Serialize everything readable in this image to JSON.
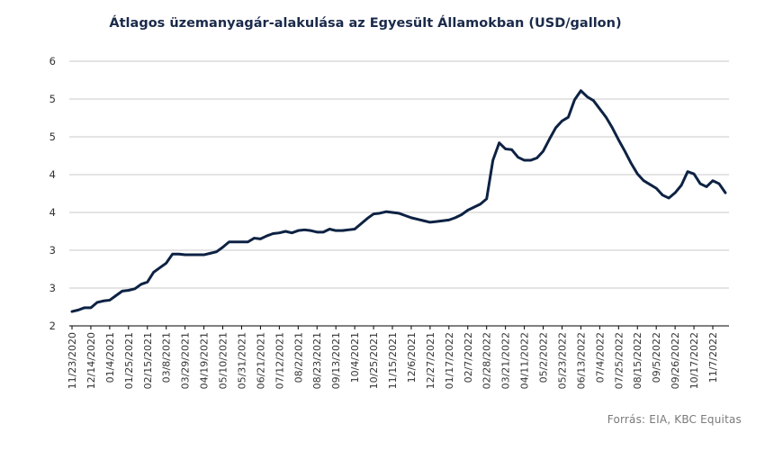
{
  "title": "Átlagos üzemanyagár-alakulása az Egyesült  Államokban (USD/gallon)",
  "source": "Forrás: EIA, KBC Equitas",
  "chart_data": {
    "type": "line",
    "title": "Átlagos üzemanyagár-alakulása az Egyesült  Államokban (USD/gallon)",
    "y_tick_labels": [
      "2",
      "3",
      "3",
      "4",
      "4",
      "5",
      "5",
      "6"
    ],
    "y_tick_values": [
      2,
      2.5,
      3,
      3.5,
      4,
      4.5,
      5,
      5.5
    ],
    "ylim": [
      2,
      5.5
    ],
    "x_tick_labels": [
      "11/23/2020",
      "12/14/2020",
      "01/4/2021",
      "01/25/2021",
      "02/15/2021",
      "03/8/2021",
      "03/29/2021",
      "04/19/2021",
      "05/10/2021",
      "05/31/2021",
      "06/21/2021",
      "07/12/2021",
      "08/2/2021",
      "08/23/2021",
      "09/13/2021",
      "10/4/2021",
      "10/25/2021",
      "11/15/2021",
      "12/6/2021",
      "12/27/2021",
      "01/17/2022",
      "02/7/2022",
      "02/28/2022",
      "03/21/2022",
      "04/11/2022",
      "05/2/2022",
      "05/23/2022",
      "06/13/2022",
      "07/4/2022",
      "07/25/2022",
      "08/15/2022",
      "09/5/2022",
      "09/26/2022",
      "10/17/2022",
      "11/7/2022"
    ],
    "grid": true,
    "legend": "none",
    "color": "#0d2243",
    "series": [
      {
        "x": [
          "11/23/2020",
          "11/30/2020",
          "12/7/2020",
          "12/14/2020",
          "12/21/2020",
          "12/28/2020",
          "01/4/2021",
          "01/11/2021",
          "01/18/2021",
          "01/25/2021",
          "02/1/2021",
          "02/8/2021",
          "02/15/2021",
          "02/22/2021",
          "03/1/2021",
          "03/8/2021",
          "03/15/2021",
          "03/22/2021",
          "03/29/2021",
          "04/5/2021",
          "04/12/2021",
          "04/19/2021",
          "04/26/2021",
          "05/3/2021",
          "05/10/2021",
          "05/17/2021",
          "05/24/2021",
          "05/31/2021",
          "06/7/2021",
          "06/14/2021",
          "06/21/2021",
          "06/28/2021",
          "07/5/2021",
          "07/12/2021",
          "07/19/2021",
          "07/26/2021",
          "08/2/2021",
          "08/9/2021",
          "08/16/2021",
          "08/23/2021",
          "08/30/2021",
          "09/6/2021",
          "09/13/2021",
          "09/20/2021",
          "09/27/2021",
          "10/4/2021",
          "10/11/2021",
          "10/18/2021",
          "10/25/2021",
          "11/1/2021",
          "11/8/2021",
          "11/15/2021",
          "11/22/2021",
          "11/29/2021",
          "12/6/2021",
          "12/13/2021",
          "12/20/2021",
          "12/27/2021",
          "01/3/2022",
          "01/10/2022",
          "01/17/2022",
          "01/24/2022",
          "01/31/2022",
          "02/7/2022",
          "02/14/2022",
          "02/21/2022",
          "02/28/2022",
          "03/7/2022",
          "03/14/2022",
          "03/21/2022",
          "03/28/2022",
          "04/4/2022",
          "04/11/2022",
          "04/18/2022",
          "04/25/2022",
          "05/2/2022",
          "05/9/2022",
          "05/16/2022",
          "05/23/2022",
          "05/30/2022",
          "06/6/2022",
          "06/13/2022",
          "06/20/2022",
          "06/27/2022",
          "07/4/2022",
          "07/11/2022",
          "07/18/2022",
          "07/25/2022",
          "08/1/2022",
          "08/8/2022",
          "08/15/2022",
          "08/22/2022",
          "08/29/2022",
          "09/5/2022",
          "09/12/2022",
          "09/19/2022",
          "09/26/2022",
          "10/3/2022",
          "10/10/2022",
          "10/17/2022",
          "10/24/2022",
          "10/31/2022",
          "11/7/2022",
          "11/14/2022",
          "11/21/2022"
        ],
        "values": [
          2.19,
          2.21,
          2.24,
          2.24,
          2.31,
          2.33,
          2.34,
          2.4,
          2.46,
          2.47,
          2.49,
          2.55,
          2.58,
          2.71,
          2.77,
          2.83,
          2.95,
          2.95,
          2.94,
          2.94,
          2.94,
          2.94,
          2.96,
          2.98,
          3.04,
          3.11,
          3.11,
          3.11,
          3.11,
          3.16,
          3.15,
          3.19,
          3.22,
          3.23,
          3.25,
          3.23,
          3.26,
          3.27,
          3.26,
          3.24,
          3.24,
          3.28,
          3.26,
          3.26,
          3.27,
          3.28,
          3.35,
          3.42,
          3.48,
          3.49,
          3.51,
          3.5,
          3.49,
          3.46,
          3.43,
          3.41,
          3.39,
          3.37,
          3.38,
          3.39,
          3.4,
          3.43,
          3.47,
          3.53,
          3.57,
          3.61,
          3.68,
          4.19,
          4.42,
          4.34,
          4.33,
          4.23,
          4.19,
          4.19,
          4.22,
          4.31,
          4.47,
          4.62,
          4.71,
          4.76,
          4.99,
          5.11,
          5.03,
          4.98,
          4.87,
          4.76,
          4.62,
          4.46,
          4.31,
          4.15,
          4.01,
          3.92,
          3.87,
          3.82,
          3.73,
          3.69,
          3.76,
          3.86,
          4.04,
          4.01,
          3.88,
          3.84,
          3.92,
          3.88,
          3.76
        ]
      }
    ]
  }
}
